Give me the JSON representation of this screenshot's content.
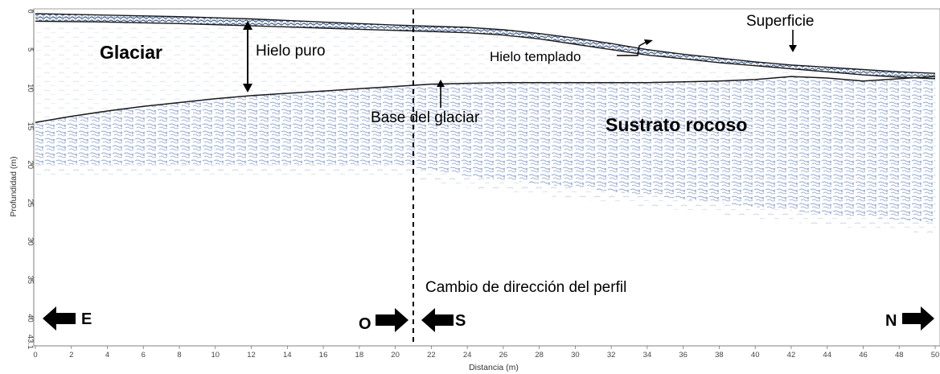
{
  "chart_data": {
    "type": "radargram",
    "xlabel": "Distancia (m)",
    "ylabel": "Profundidad (m)",
    "xlim": [
      0,
      50
    ],
    "ylim": [
      43.1,
      0
    ],
    "x_ticks": [
      0,
      2,
      4,
      6,
      8,
      10,
      12,
      14,
      16,
      18,
      20,
      22,
      24,
      26,
      28,
      30,
      32,
      34,
      36,
      38,
      40,
      42,
      44,
      46,
      48,
      50
    ],
    "y_ticks": [
      0,
      5,
      10,
      15,
      20,
      25,
      30,
      35,
      40,
      43.1
    ],
    "x_tick_labels": [
      "0",
      "2",
      "4",
      "6",
      "8",
      "10",
      "12",
      "14",
      "16",
      "18",
      "20",
      "22",
      "24",
      "26",
      "28",
      "30",
      "32",
      "34",
      "36",
      "38",
      "40",
      "42",
      "44",
      "46",
      "48",
      "50"
    ],
    "y_tick_labels": [
      "0",
      "5",
      "10",
      "15",
      "20",
      "25",
      "30",
      "35",
      "40",
      "43.1"
    ],
    "surface": {
      "x": [
        0,
        4,
        8,
        12,
        16,
        20,
        24,
        26,
        28,
        30,
        32,
        34,
        36,
        38,
        40,
        42,
        44,
        46,
        48,
        50
      ],
      "y": [
        0.3,
        0.5,
        0.7,
        1.0,
        1.4,
        1.8,
        2.1,
        2.4,
        2.9,
        3.5,
        4.2,
        5.0,
        5.6,
        6.1,
        6.6,
        7.0,
        7.3,
        7.6,
        7.9,
        8.1
      ]
    },
    "temperate_ice_base": {
      "x": [
        0,
        4,
        8,
        12,
        16,
        20,
        24,
        26,
        28,
        30,
        32,
        34,
        36,
        38,
        40,
        42,
        44,
        46,
        48,
        50
      ],
      "y": [
        1.3,
        1.4,
        1.6,
        1.9,
        2.2,
        2.5,
        2.8,
        3.1,
        3.6,
        4.3,
        5.0,
        5.7,
        6.2,
        6.7,
        7.1,
        7.5,
        7.9,
        8.3,
        8.6,
        8.8
      ]
    },
    "glacier_base": {
      "x": [
        0,
        2,
        4,
        6,
        8,
        10,
        12,
        14,
        16,
        18,
        20,
        22,
        24,
        26,
        28,
        30,
        32,
        34,
        36,
        38,
        40,
        42,
        44,
        46,
        48,
        50
      ],
      "y": [
        14.5,
        13.7,
        13.0,
        12.4,
        11.9,
        11.4,
        11.0,
        10.7,
        10.4,
        10.1,
        9.8,
        9.5,
        9.4,
        9.3,
        9.3,
        9.3,
        9.3,
        9.3,
        9.2,
        9.1,
        8.9,
        8.5,
        8.7,
        9.1,
        8.8,
        8.5
      ]
    },
    "signal_limit": {
      "x": [
        0,
        10,
        20,
        24,
        30,
        36,
        40,
        44,
        48,
        50
      ],
      "y": [
        20.0,
        20.0,
        20.0,
        21.5,
        23.0,
        24.5,
        25.5,
        26.5,
        27.2,
        27.5
      ]
    },
    "profile_direction_change_x": 21.0,
    "annotations": {
      "glacier": "Glaciar",
      "pure_ice": "Hielo puro",
      "temperate_ice": "Hielo templado",
      "surface": "Superficie",
      "glacier_base": "Base del glaciar",
      "bedrock": "Sustrato rocoso",
      "direction_change": "Cambio de dirección del perfil"
    },
    "directions": {
      "east": "E",
      "west": "O",
      "south": "S",
      "north": "N"
    }
  },
  "colors": {
    "signal_dark": "#0a2a78",
    "signal_mid": "#2a5fb8",
    "signal_light": "#9cb6e2",
    "interface_line": "#1a1a1a",
    "surface_green": "#2f7a3c",
    "axis": "#555555"
  }
}
